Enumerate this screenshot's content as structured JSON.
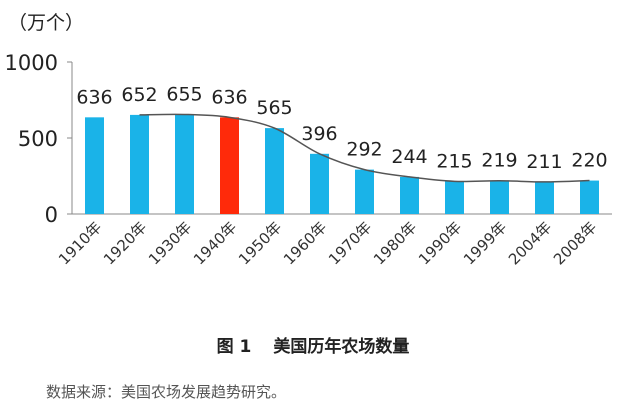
{
  "chart_data": {
    "type": "bar",
    "unit_label": "（万个）",
    "categories": [
      "1910年",
      "1920年",
      "1930年",
      "1940年",
      "1950年",
      "1960年",
      "1970年",
      "1980年",
      "1990年",
      "1999年",
      "2004年",
      "2008年"
    ],
    "values": [
      636,
      652,
      655,
      636,
      565,
      396,
      292,
      244,
      215,
      219,
      211,
      220
    ],
    "highlight_index": 3,
    "colors": {
      "bar": "#1ab3e8",
      "highlight": "#ff2a0a",
      "trend": "#555555",
      "axis": "#888888"
    },
    "ylim": [
      0,
      1000
    ],
    "yticks": [
      0,
      500,
      1000
    ],
    "trend_line": true,
    "grid": false
  },
  "figure": {
    "number": "图 1",
    "title": "美国历年农场数量"
  },
  "source_note": "数据来源：美国农场发展趋势研究。"
}
